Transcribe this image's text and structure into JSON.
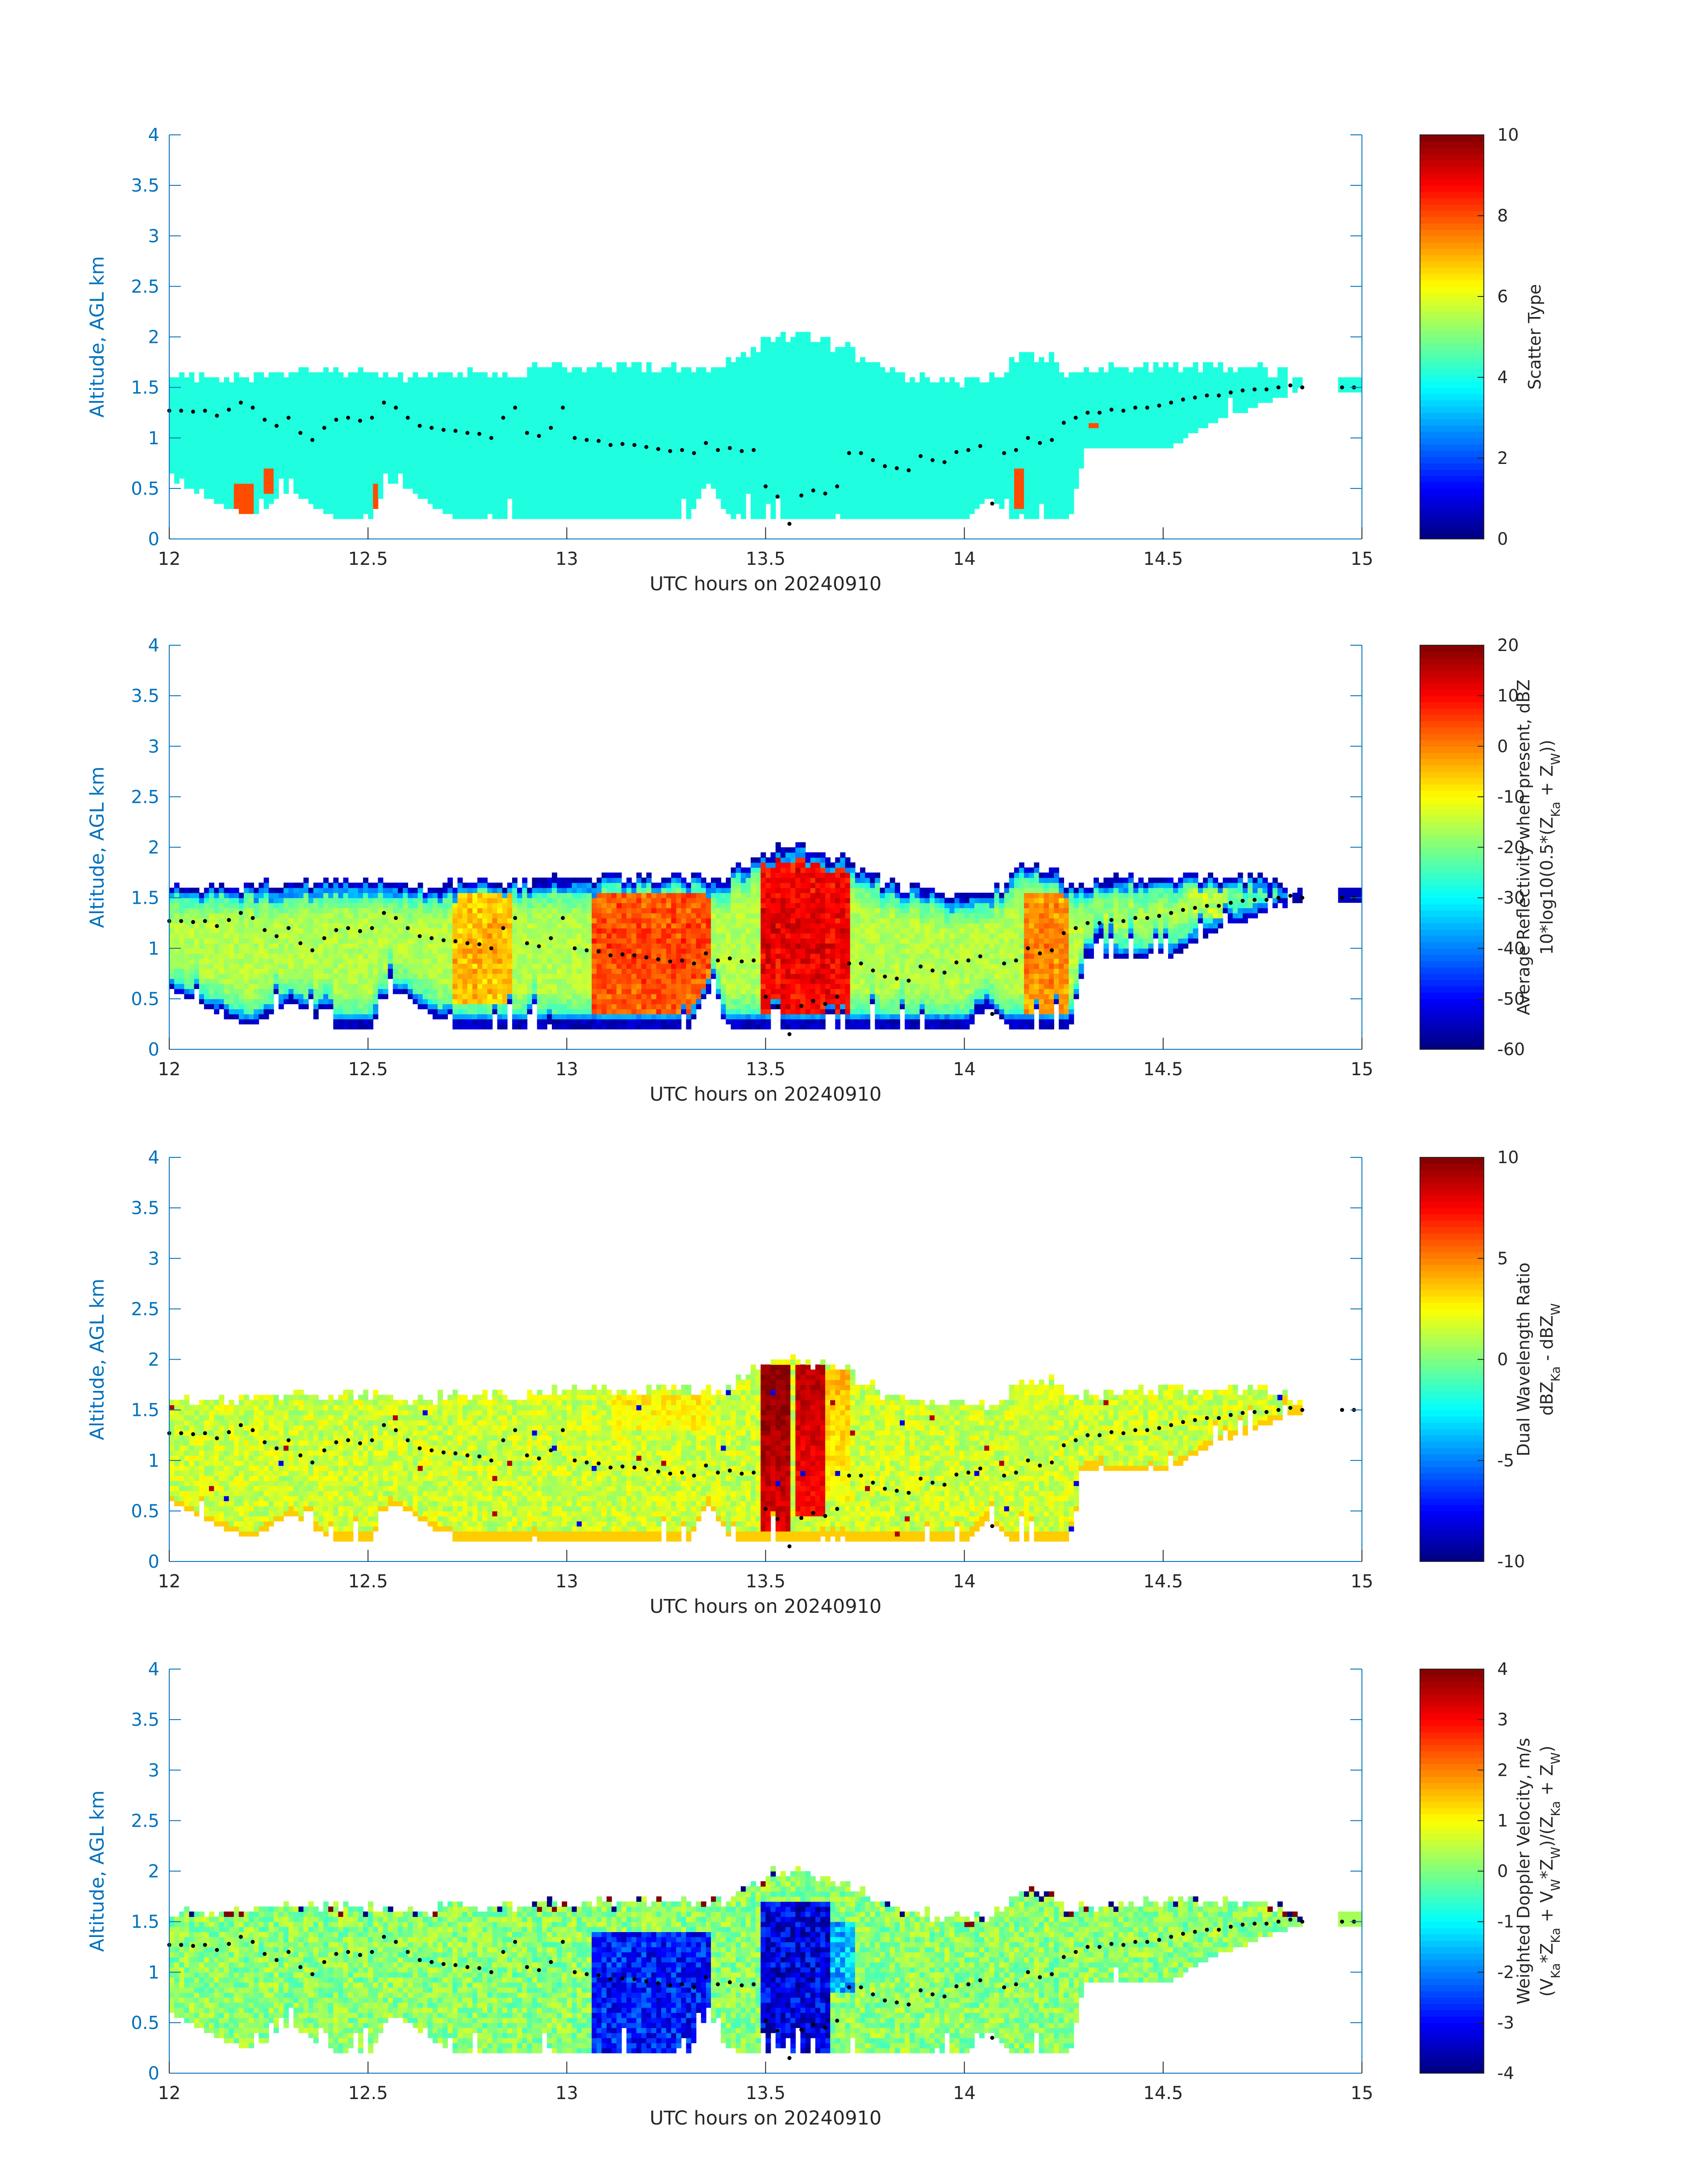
{
  "chart_data": [
    {
      "type": "heatmap",
      "xlabel": "UTC hours on 20240910",
      "ylabel": "Altitude, AGL km",
      "xlim": [
        12,
        15
      ],
      "ylim": [
        0,
        4
      ],
      "x_ticks": [
        "12",
        "12.5",
        "13",
        "13.5",
        "14",
        "14.5",
        "15"
      ],
      "y_ticks": [
        "0",
        "0.5",
        "1",
        "1.5",
        "2",
        "2.5",
        "3",
        "3.5",
        "4"
      ],
      "colorbar_label_lines": [
        "Scatter Type"
      ],
      "clim": [
        0,
        10
      ],
      "colorbar_ticks": [
        "0",
        "2",
        "4",
        "6",
        "8",
        "10"
      ],
      "field": "scatter",
      "grid": false,
      "colormap": "jet"
    },
    {
      "type": "heatmap",
      "xlabel": "UTC hours on 20240910",
      "ylabel": "Altitude, AGL km",
      "xlim": [
        12,
        15
      ],
      "ylim": [
        0,
        4
      ],
      "x_ticks": [
        "12",
        "12.5",
        "13",
        "13.5",
        "14",
        "14.5",
        "15"
      ],
      "y_ticks": [
        "0",
        "0.5",
        "1",
        "1.5",
        "2",
        "2.5",
        "3",
        "3.5",
        "4"
      ],
      "colorbar_label_lines": [
        "Average Reflectivity when present, dBZ",
        "10*log10(0.5*(Z_{Ka} + Z_{W}))"
      ],
      "clim": [
        -60,
        20
      ],
      "colorbar_ticks": [
        "-60",
        "-50",
        "-40",
        "-30",
        "-20",
        "-10",
        "0",
        "10",
        "20"
      ],
      "field": "reflectivity",
      "grid": false,
      "colormap": "jet"
    },
    {
      "type": "heatmap",
      "xlabel": "UTC hours on 20240910",
      "ylabel": "Altitude, AGL km",
      "xlim": [
        12,
        15
      ],
      "ylim": [
        0,
        4
      ],
      "x_ticks": [
        "12",
        "12.5",
        "13",
        "13.5",
        "14",
        "14.5",
        "15"
      ],
      "y_ticks": [
        "0",
        "0.5",
        "1",
        "1.5",
        "2",
        "2.5",
        "3",
        "3.5",
        "4"
      ],
      "colorbar_label_lines": [
        "Dual Wavelength Ratio",
        "dBZ_{Ka} - dBZ_{W}"
      ],
      "clim": [
        -10,
        10
      ],
      "colorbar_ticks": [
        "-10",
        "-5",
        "0",
        "5",
        "10"
      ],
      "field": "dwr",
      "grid": false,
      "colormap": "jet"
    },
    {
      "type": "heatmap",
      "xlabel": "UTC hours on 20240910",
      "ylabel": "Altitude, AGL km",
      "xlim": [
        12,
        15
      ],
      "ylim": [
        0,
        4
      ],
      "x_ticks": [
        "12",
        "12.5",
        "13",
        "13.5",
        "14",
        "14.5",
        "15"
      ],
      "y_ticks": [
        "0",
        "0.5",
        "1",
        "1.5",
        "2",
        "2.5",
        "3",
        "3.5",
        "4"
      ],
      "colorbar_label_lines": [
        "Weighted Doppler Velocity, m/s",
        "(V_{Ka}*Z_{Ka} + V_{W}*Z_{W})/(Z_{Ka} + Z_{W})"
      ],
      "clim": [
        -4,
        4
      ],
      "colorbar_ticks": [
        "-4",
        "-3",
        "-2",
        "-1",
        "0",
        "1",
        "2",
        "3",
        "4"
      ],
      "field": "velocity",
      "grid": false,
      "colormap": "jet"
    }
  ],
  "echo_profile": {
    "description_units": "UTC hours / km AGL",
    "top": [
      [
        12.0,
        1.6
      ],
      [
        12.2,
        1.6
      ],
      [
        12.22,
        1.62
      ],
      [
        12.55,
        1.62
      ],
      [
        12.6,
        1.58
      ],
      [
        12.8,
        1.64
      ],
      [
        13.0,
        1.66
      ],
      [
        13.3,
        1.7
      ],
      [
        13.38,
        1.65
      ],
      [
        13.45,
        1.85
      ],
      [
        13.5,
        1.95
      ],
      [
        13.58,
        1.97
      ],
      [
        13.7,
        1.85
      ],
      [
        13.8,
        1.62
      ],
      [
        13.9,
        1.55
      ],
      [
        14.0,
        1.5
      ],
      [
        14.05,
        1.55
      ],
      [
        14.1,
        1.6
      ],
      [
        14.12,
        1.78
      ],
      [
        14.2,
        1.8
      ],
      [
        14.25,
        1.62
      ],
      [
        14.5,
        1.7
      ],
      [
        14.6,
        1.7
      ],
      [
        14.75,
        1.66
      ],
      [
        14.83,
        1.58
      ]
    ],
    "base": [
      [
        12.0,
        0.55
      ],
      [
        12.1,
        0.35
      ],
      [
        12.2,
        0.2
      ],
      [
        12.3,
        0.45
      ],
      [
        12.4,
        0.2
      ],
      [
        12.5,
        0.2
      ],
      [
        12.55,
        0.55
      ],
      [
        12.6,
        0.45
      ],
      [
        12.7,
        0.2
      ],
      [
        13.0,
        0.2
      ],
      [
        13.3,
        0.2
      ],
      [
        13.35,
        0.55
      ],
      [
        13.4,
        0.2
      ],
      [
        13.9,
        0.2
      ],
      [
        14.0,
        0.2
      ],
      [
        14.05,
        0.4
      ],
      [
        14.1,
        0.2
      ],
      [
        14.26,
        0.2
      ],
      [
        14.3,
        0.9
      ],
      [
        14.5,
        0.85
      ],
      [
        14.6,
        1.1
      ],
      [
        14.7,
        1.25
      ],
      [
        14.8,
        1.4
      ],
      [
        14.83,
        1.45
      ]
    ],
    "detached_patch": {
      "x": [
        14.94,
        15.0
      ],
      "y": [
        1.45,
        1.6
      ]
    }
  },
  "cloud_base_points": [
    [
      12.0,
      1.27
    ],
    [
      12.03,
      1.27
    ],
    [
      12.06,
      1.26
    ],
    [
      12.09,
      1.27
    ],
    [
      12.12,
      1.22
    ],
    [
      12.15,
      1.28
    ],
    [
      12.18,
      1.35
    ],
    [
      12.21,
      1.3
    ],
    [
      12.24,
      1.18
    ],
    [
      12.27,
      1.12
    ],
    [
      12.3,
      1.2
    ],
    [
      12.33,
      1.05
    ],
    [
      12.36,
      0.98
    ],
    [
      12.39,
      1.1
    ],
    [
      12.42,
      1.18
    ],
    [
      12.45,
      1.2
    ],
    [
      12.48,
      1.17
    ],
    [
      12.51,
      1.2
    ],
    [
      12.54,
      1.35
    ],
    [
      12.57,
      1.3
    ],
    [
      12.6,
      1.2
    ],
    [
      12.63,
      1.12
    ],
    [
      12.66,
      1.1
    ],
    [
      12.69,
      1.08
    ],
    [
      12.72,
      1.07
    ],
    [
      12.75,
      1.05
    ],
    [
      12.78,
      1.04
    ],
    [
      12.81,
      1.0
    ],
    [
      12.84,
      1.2
    ],
    [
      12.87,
      1.3
    ],
    [
      12.9,
      1.05
    ],
    [
      12.93,
      1.02
    ],
    [
      12.96,
      1.1
    ],
    [
      12.99,
      1.3
    ],
    [
      13.02,
      1.0
    ],
    [
      13.05,
      0.98
    ],
    [
      13.08,
      0.97
    ],
    [
      13.11,
      0.93
    ],
    [
      13.14,
      0.94
    ],
    [
      13.17,
      0.93
    ],
    [
      13.2,
      0.91
    ],
    [
      13.23,
      0.89
    ],
    [
      13.26,
      0.87
    ],
    [
      13.29,
      0.88
    ],
    [
      13.32,
      0.85
    ],
    [
      13.35,
      0.95
    ],
    [
      13.38,
      0.88
    ],
    [
      13.41,
      0.9
    ],
    [
      13.44,
      0.87
    ],
    [
      13.47,
      0.88
    ],
    [
      13.5,
      0.52
    ],
    [
      13.53,
      0.42
    ],
    [
      13.56,
      0.15
    ],
    [
      13.59,
      0.43
    ],
    [
      13.62,
      0.48
    ],
    [
      13.65,
      0.45
    ],
    [
      13.68,
      0.52
    ],
    [
      13.71,
      0.85
    ],
    [
      13.74,
      0.85
    ],
    [
      13.77,
      0.78
    ],
    [
      13.8,
      0.72
    ],
    [
      13.83,
      0.7
    ],
    [
      13.86,
      0.68
    ],
    [
      13.89,
      0.82
    ],
    [
      13.92,
      0.78
    ],
    [
      13.95,
      0.76
    ],
    [
      13.98,
      0.86
    ],
    [
      14.01,
      0.88
    ],
    [
      14.04,
      0.92
    ],
    [
      14.07,
      0.35
    ],
    [
      14.1,
      0.85
    ],
    [
      14.13,
      0.88
    ],
    [
      14.16,
      1.0
    ],
    [
      14.19,
      0.95
    ],
    [
      14.22,
      0.98
    ],
    [
      14.25,
      1.15
    ],
    [
      14.28,
      1.2
    ],
    [
      14.31,
      1.25
    ],
    [
      14.34,
      1.25
    ],
    [
      14.37,
      1.28
    ],
    [
      14.4,
      1.27
    ],
    [
      14.43,
      1.3
    ],
    [
      14.46,
      1.3
    ],
    [
      14.49,
      1.32
    ],
    [
      14.52,
      1.35
    ],
    [
      14.55,
      1.38
    ],
    [
      14.58,
      1.4
    ],
    [
      14.61,
      1.42
    ],
    [
      14.64,
      1.42
    ],
    [
      14.67,
      1.45
    ],
    [
      14.7,
      1.47
    ],
    [
      14.73,
      1.48
    ],
    [
      14.76,
      1.48
    ],
    [
      14.79,
      1.5
    ],
    [
      14.82,
      1.52
    ],
    [
      14.85,
      1.5
    ],
    [
      14.95,
      1.5
    ],
    [
      14.98,
      1.5
    ]
  ],
  "feature_cells": {
    "scatter_outliers": [
      [
        12.16,
        12.2,
        0.2,
        0.52
      ],
      [
        12.23,
        12.25,
        0.42,
        0.65
      ],
      [
        12.5,
        12.52,
        0.22,
        0.52
      ],
      [
        14.12,
        14.14,
        0.3,
        0.65
      ],
      [
        14.31,
        14.33,
        1.08,
        1.12
      ]
    ],
    "reflectivity_cores": [
      [
        12.7,
        12.85,
        0.4,
        1.55,
        -4
      ],
      [
        13.05,
        13.35,
        0.2,
        1.55,
        5
      ],
      [
        13.48,
        13.7,
        0.25,
        1.9,
        12
      ],
      [
        14.14,
        14.25,
        0.35,
        1.55,
        0
      ],
      [
        14.55,
        14.65,
        1.3,
        1.6,
        -15
      ]
    ],
    "dwr_cores": [
      [
        13.48,
        13.55,
        0.3,
        1.95,
        10
      ],
      [
        13.57,
        13.64,
        0.4,
        1.95,
        9
      ],
      [
        13.64,
        13.7,
        0.6,
        1.9,
        4
      ],
      [
        13.1,
        13.35,
        1.3,
        1.65,
        3
      ],
      [
        14.12,
        14.2,
        1.0,
        1.75,
        2
      ]
    ],
    "velocity_cores": [
      [
        13.05,
        13.35,
        0.2,
        1.4,
        -2.8
      ],
      [
        13.48,
        13.65,
        0.2,
        1.7,
        -3.2
      ],
      [
        13.66,
        13.72,
        0.8,
        1.5,
        -1.5
      ]
    ]
  },
  "colormap_name": "jet",
  "dot_color": "#000000",
  "axis_color": "#0072bd",
  "cloud_color_hint": "#1fffdf"
}
